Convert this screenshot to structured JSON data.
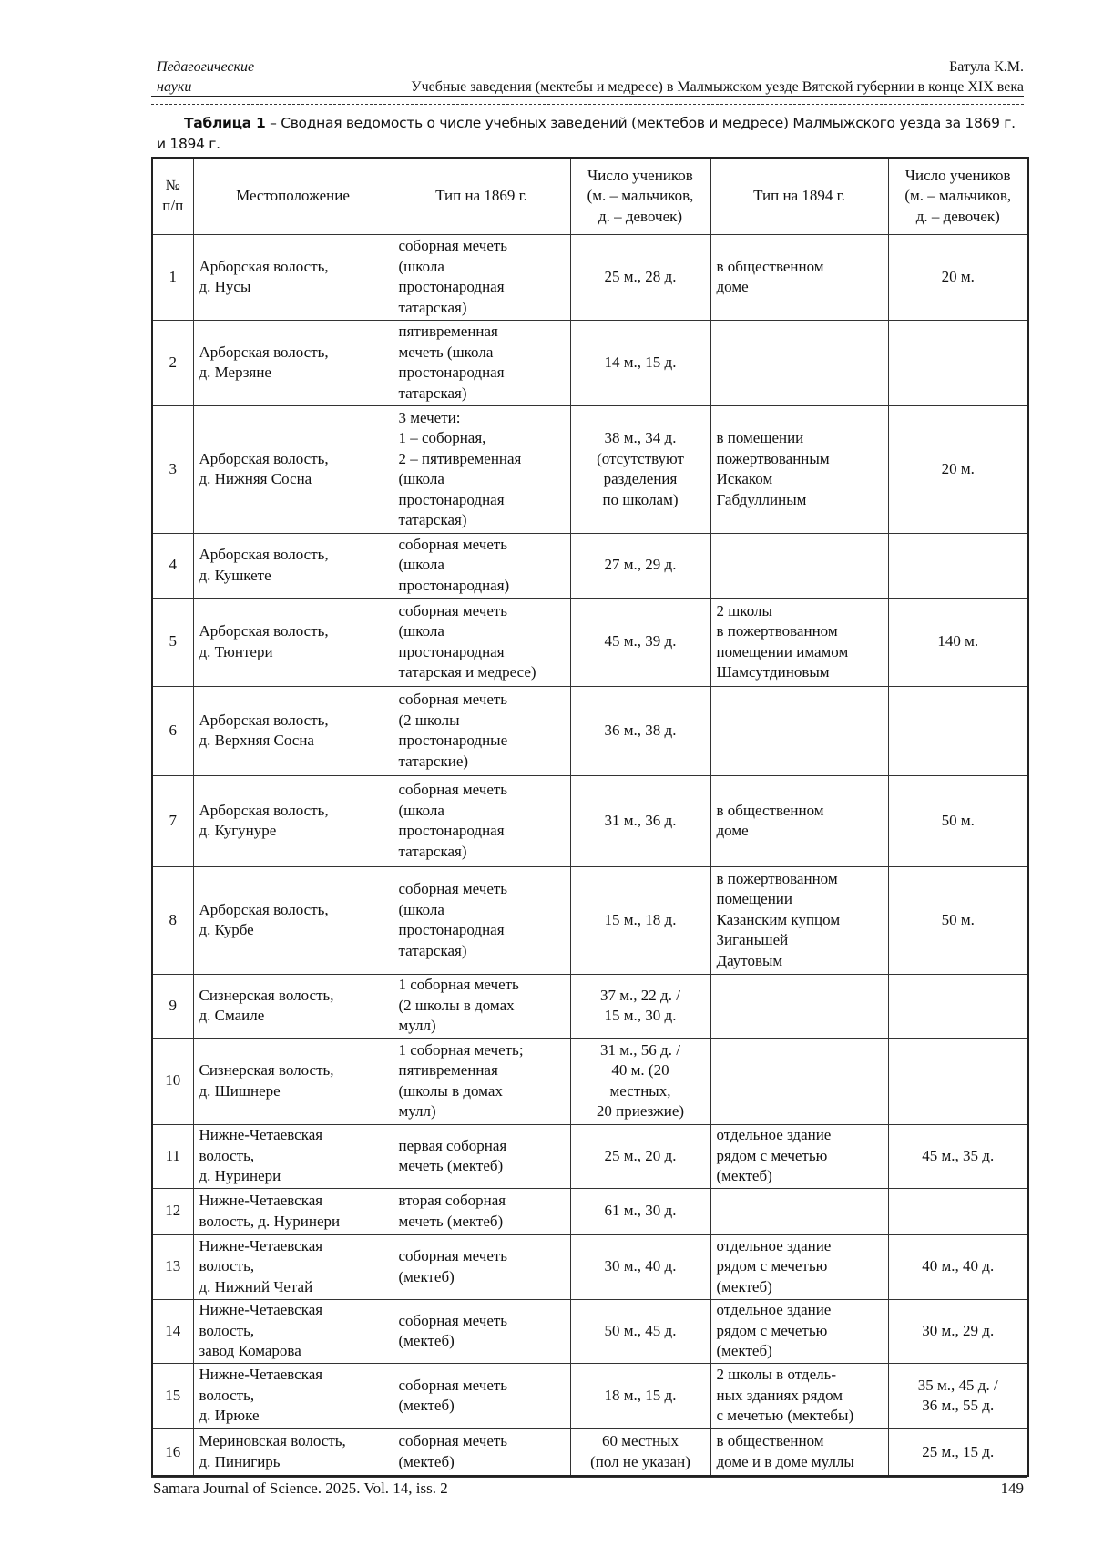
{
  "header": {
    "section": "Педагогические\nнауки",
    "author": "Батула К.М.",
    "article_title": "Учебные заведения (мектебы и медресе) в Малмыжском уезде Вятской губернии в конце XIX века"
  },
  "caption": {
    "label": "Таблица 1",
    "text": " – Сводная ведомость о числе учебных заведений (мектебов и медресе) Малмыжского уезда за 1869 г. и 1894 г."
  },
  "table": {
    "columns": [
      "№\nп/п",
      "Местоположение",
      "Тип на 1869 г.",
      "Число учеников\n(м. – мальчиков,\nд. – девочек)",
      "Тип на 1894 г.",
      "Число учеников\n(м. – мальчиков,\nд. – девочек)"
    ],
    "rows": [
      [
        "1",
        "Арборская волость,\nд. Нусы",
        "соборная мечеть\n(школа\nпростонародная\nтатарская)",
        "25 м., 28 д.",
        "в общественном\nдоме",
        "20 м."
      ],
      [
        "2",
        "Арборская волость,\nд. Мерзяне",
        "пятивременная\nмечеть (школа\nпростонародная\nтатарская)",
        "14 м., 15 д.",
        "",
        ""
      ],
      [
        "3",
        "Арборская волость,\nд. Нижняя Сосна",
        "3 мечети:\n1 – соборная,\n2 – пятивременная\n(школа\nпростонародная\nтатарская)",
        "38 м., 34 д.\n(отсутствуют\nразделения\nпо школам)",
        "в помещении\nпожертвованным\nИскаком\nГабдуллиным",
        "20 м."
      ],
      [
        "4",
        "Арборская волость,\nд. Кушкете",
        "соборная мечеть\n(школа\nпростонародная)",
        "27 м., 29 д.",
        "",
        ""
      ],
      [
        "5",
        "Арборская волость,\nд. Тюнтери",
        "соборная мечеть\n(школа\nпростонародная\nтатарская и медресе)",
        "45 м., 39 д.",
        "2 школы\nв пожертвованном\nпомещении имамом\nШамсутдиновым",
        "140 м."
      ],
      [
        "6",
        "Арборская волость,\nд. Верхняя Сосна",
        "соборная мечеть\n(2 школы\nпростонародные\nтатарские)",
        "36 м., 38 д.",
        "",
        ""
      ],
      [
        "7",
        "Арборская волость,\nд. Кугунуре",
        "соборная мечеть\n(школа\nпростонародная\nтатарская)",
        "31 м., 36 д.",
        "в общественном\nдоме",
        "50 м."
      ],
      [
        "8",
        "Арборская волость,\nд. Курбе",
        "соборная мечеть\n(школа\nпростонародная\nтатарская)",
        "15 м., 18 д.",
        "в пожертвованном\nпомещении\nКазанским купцом\nЗиганьшей\nДаутовым",
        "50 м."
      ],
      [
        "9",
        "Сизнерская волость,\nд. Смаиле",
        "1 соборная мечеть\n(2 школы в домах\nмулл)",
        "37 м., 22 д. /\n15 м., 30 д.",
        "",
        ""
      ],
      [
        "10",
        "Сизнерская волость,\nд. Шишнере",
        "1 соборная мечеть;\nпятивременная\n(школы в домах\nмулл)",
        "31 м., 56 д. /\n40 м. (20\nместных,\n20 приезжие)",
        "",
        ""
      ],
      [
        "11",
        "Нижне-Четаевская\nволость,\nд. Нуринери",
        "первая соборная\nмечеть (мектеб)",
        "25 м., 20 д.",
        "отдельное здание\nрядом с мечетью\n(мектеб)",
        "45 м., 35 д."
      ],
      [
        "12",
        "Нижне-Четаевская\nволость, д. Нуринери",
        "вторая соборная\nмечеть (мектеб)",
        "61 м., 30 д.",
        "",
        ""
      ],
      [
        "13",
        "Нижне-Четаевская\nволость,\nд. Нижний Четай",
        "соборная мечеть\n(мектеб)",
        "30 м., 40 д.",
        "отдельное здание\nрядом с мечетью\n(мектеб)",
        "40 м., 40 д."
      ],
      [
        "14",
        "Нижне-Четаевская\nволость,\nзавод Комарова",
        "соборная мечеть\n(мектеб)",
        "50 м., 45 д.",
        "отдельное здание\nрядом с мечетью\n(мектеб)",
        "30 м., 29 д."
      ],
      [
        "15",
        "Нижне-Четаевская\nволость,\nд. Ирюке",
        "соборная мечеть\n(мектеб)",
        "18 м., 15 д.",
        "2 школы в отдель-\nных зданиях рядом\nс мечетью (мектебы)",
        "35 м., 45 д. /\n36 м., 55 д."
      ],
      [
        "16",
        "Мериновская волость,\nд. Пинигирь",
        "соборная мечеть\n(мектеб)",
        "60 местных\n(пол не указан)",
        "в общественном\nдоме и в доме муллы",
        "25 м., 15 д."
      ]
    ]
  },
  "footer": {
    "journal": "Samara Journal of Science. 2025. Vol. 14, iss. 2",
    "page": "149"
  }
}
